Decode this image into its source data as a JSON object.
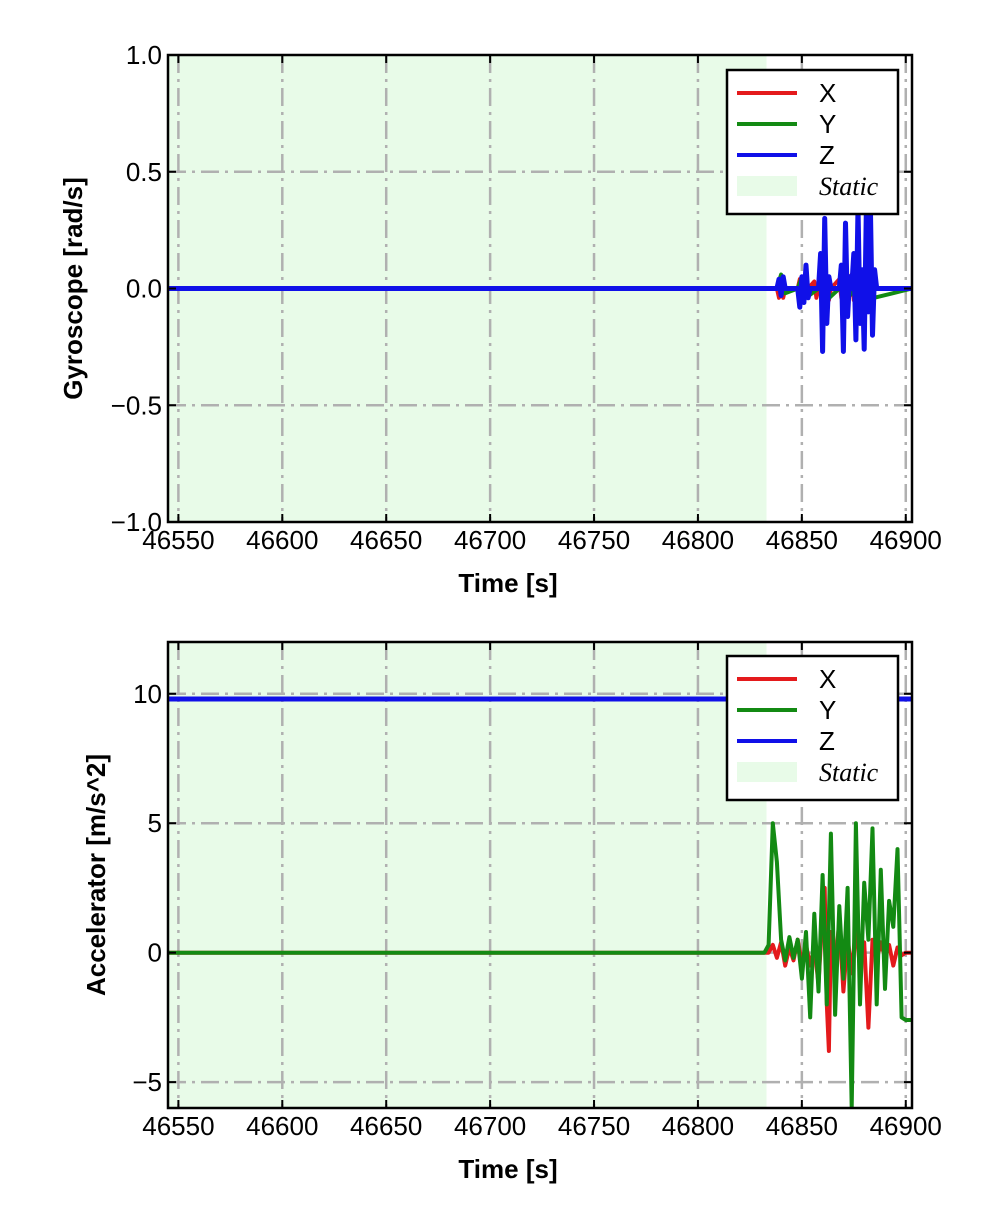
{
  "chart_data": [
    {
      "type": "line",
      "xlabel": "Time [s]",
      "ylabel": "Gyroscope [rad/s]",
      "xlim": [
        46545,
        46903
      ],
      "ylim": [
        -1.0,
        1.0
      ],
      "xticks": [
        46550,
        46600,
        46650,
        46700,
        46750,
        46800,
        46850,
        46900
      ],
      "xtick_labels": [
        "46550",
        "46600",
        "46650",
        "46700",
        "46750",
        "46800",
        "46850",
        "46900"
      ],
      "yticks": [
        -1.0,
        -0.5,
        0.0,
        0.5,
        1.0
      ],
      "ytick_labels": [
        "−1.0",
        "−0.5",
        "0.0",
        "0.5",
        "1.0"
      ],
      "grid": true,
      "legend_position": "top-right",
      "static_region": {
        "x0": 46545,
        "x1": 46833,
        "label": "Static",
        "color": "#e8fbe8"
      },
      "series": [
        {
          "name": "X",
          "color": "#e41a1c",
          "x": [
            46545,
            46838,
            46839,
            46840,
            46841,
            46842,
            46848,
            46849,
            46850,
            46856,
            46857,
            46858,
            46862,
            46863,
            46864,
            46868,
            46869,
            46870,
            46874,
            46875,
            46876,
            46880,
            46881,
            46882,
            46903
          ],
          "y": [
            0,
            0,
            -0.04,
            0.03,
            -0.04,
            0,
            0,
            0.04,
            -0.03,
            0.03,
            -0.04,
            0,
            0.05,
            -0.05,
            0,
            0.04,
            -0.04,
            0,
            0.06,
            -0.05,
            0,
            0.05,
            -0.06,
            0,
            0
          ]
        },
        {
          "name": "Y",
          "color": "#138a13",
          "x": [
            46545,
            46838,
            46840,
            46842,
            46848,
            46850,
            46852,
            46858,
            46860,
            46862,
            46868,
            46870,
            46872,
            46876,
            46878,
            46880,
            46903
          ],
          "y": [
            0,
            0,
            0.06,
            -0.02,
            0,
            0.05,
            -0.04,
            0,
            0.06,
            -0.05,
            0,
            0.05,
            -0.04,
            0,
            0.06,
            -0.05,
            0
          ]
        },
        {
          "name": "Z",
          "color": "#1010e8",
          "x": [
            46545,
            46838,
            46839,
            46840,
            46841,
            46842,
            46848,
            46849,
            46850,
            46851,
            46852,
            46853,
            46854,
            46858,
            46859,
            46860,
            46861,
            46862,
            46863,
            46864,
            46868,
            46869,
            46870,
            46871,
            46872,
            46873,
            46874,
            46875,
            46876,
            46877,
            46878,
            46879,
            46880,
            46881,
            46882,
            46883,
            46884,
            46885,
            46886,
            46903
          ],
          "y": [
            0,
            0,
            0.04,
            -0.03,
            0.05,
            0,
            0,
            -0.08,
            0.05,
            -0.06,
            0.1,
            -0.04,
            0,
            0,
            0.15,
            -0.27,
            0.3,
            -0.15,
            0.05,
            0,
            0,
            0.1,
            -0.27,
            0.28,
            -0.12,
            0.05,
            0,
            0.15,
            -0.22,
            0.35,
            -0.15,
            0.08,
            -0.26,
            0.33,
            -0.1,
            0.35,
            -0.2,
            0.08,
            0,
            0
          ]
        }
      ]
    },
    {
      "type": "line",
      "xlabel": "Time [s]",
      "ylabel": "Accelerator [m/s^2]",
      "xlim": [
        46545,
        46903
      ],
      "ylim": [
        -6,
        12
      ],
      "xticks": [
        46550,
        46600,
        46650,
        46700,
        46750,
        46800,
        46850,
        46900
      ],
      "xtick_labels": [
        "46550",
        "46600",
        "46650",
        "46700",
        "46750",
        "46800",
        "46850",
        "46900"
      ],
      "yticks": [
        -5,
        0,
        5,
        10
      ],
      "ytick_labels": [
        "−5",
        "0",
        "5",
        "10"
      ],
      "grid": true,
      "legend_position": "top-right",
      "static_region": {
        "x0": 46545,
        "x1": 46833,
        "label": "Static",
        "color": "#e8fbe8"
      },
      "series": [
        {
          "name": "X",
          "color": "#e41a1c",
          "x": [
            46545,
            46834,
            46836,
            46838,
            46840,
            46842,
            46844,
            46846,
            46848,
            46850,
            46852,
            46854,
            46856,
            46858,
            46860,
            46861,
            46862,
            46863,
            46864,
            46866,
            46868,
            46870,
            46872,
            46874,
            46876,
            46878,
            46880,
            46882,
            46884,
            46886,
            46888,
            46890,
            46892,
            46894,
            46896,
            46898,
            46900,
            46903
          ],
          "y": [
            0,
            0,
            0.3,
            -0.2,
            0.4,
            -0.5,
            0.2,
            -0.3,
            0.5,
            -0.4,
            0.3,
            -0.5,
            0.2,
            -1.2,
            1.5,
            2.5,
            -2.0,
            -3.8,
            0.8,
            -0.5,
            1.2,
            -1.5,
            0.6,
            -0.8,
            1.0,
            -0.6,
            0.4,
            -2.9,
            0.5,
            -0.3,
            0.4,
            -0.2,
            0.3,
            -0.5,
            0.2,
            -0.1,
            0,
            0
          ]
        },
        {
          "name": "Y",
          "color": "#138a13",
          "x": [
            46545,
            46832,
            46834,
            46836,
            46838,
            46840,
            46842,
            46844,
            46846,
            46848,
            46850,
            46852,
            46854,
            46856,
            46858,
            46860,
            46862,
            46864,
            46866,
            46868,
            46870,
            46872,
            46874,
            46876,
            46878,
            46880,
            46882,
            46884,
            46886,
            46888,
            46890,
            46892,
            46894,
            46896,
            46898,
            46900,
            46903
          ],
          "y": [
            0,
            0,
            0.3,
            5.0,
            3.5,
            0.5,
            -0.3,
            0.6,
            -0.2,
            0.5,
            -1.0,
            0.8,
            -2.5,
            1.5,
            -1.5,
            3.0,
            -2.0,
            4.6,
            -2.4,
            1.8,
            -1.0,
            2.5,
            -6.0,
            5.0,
            -2.0,
            2.7,
            0.5,
            4.8,
            -2.0,
            3.2,
            -1.4,
            2.0,
            1.0,
            4.0,
            -2.5,
            -2.6,
            -2.6
          ]
        },
        {
          "name": "Z",
          "color": "#1010e8",
          "x": [
            46545,
            46903
          ],
          "y": [
            9.8,
            9.8
          ]
        }
      ]
    }
  ]
}
